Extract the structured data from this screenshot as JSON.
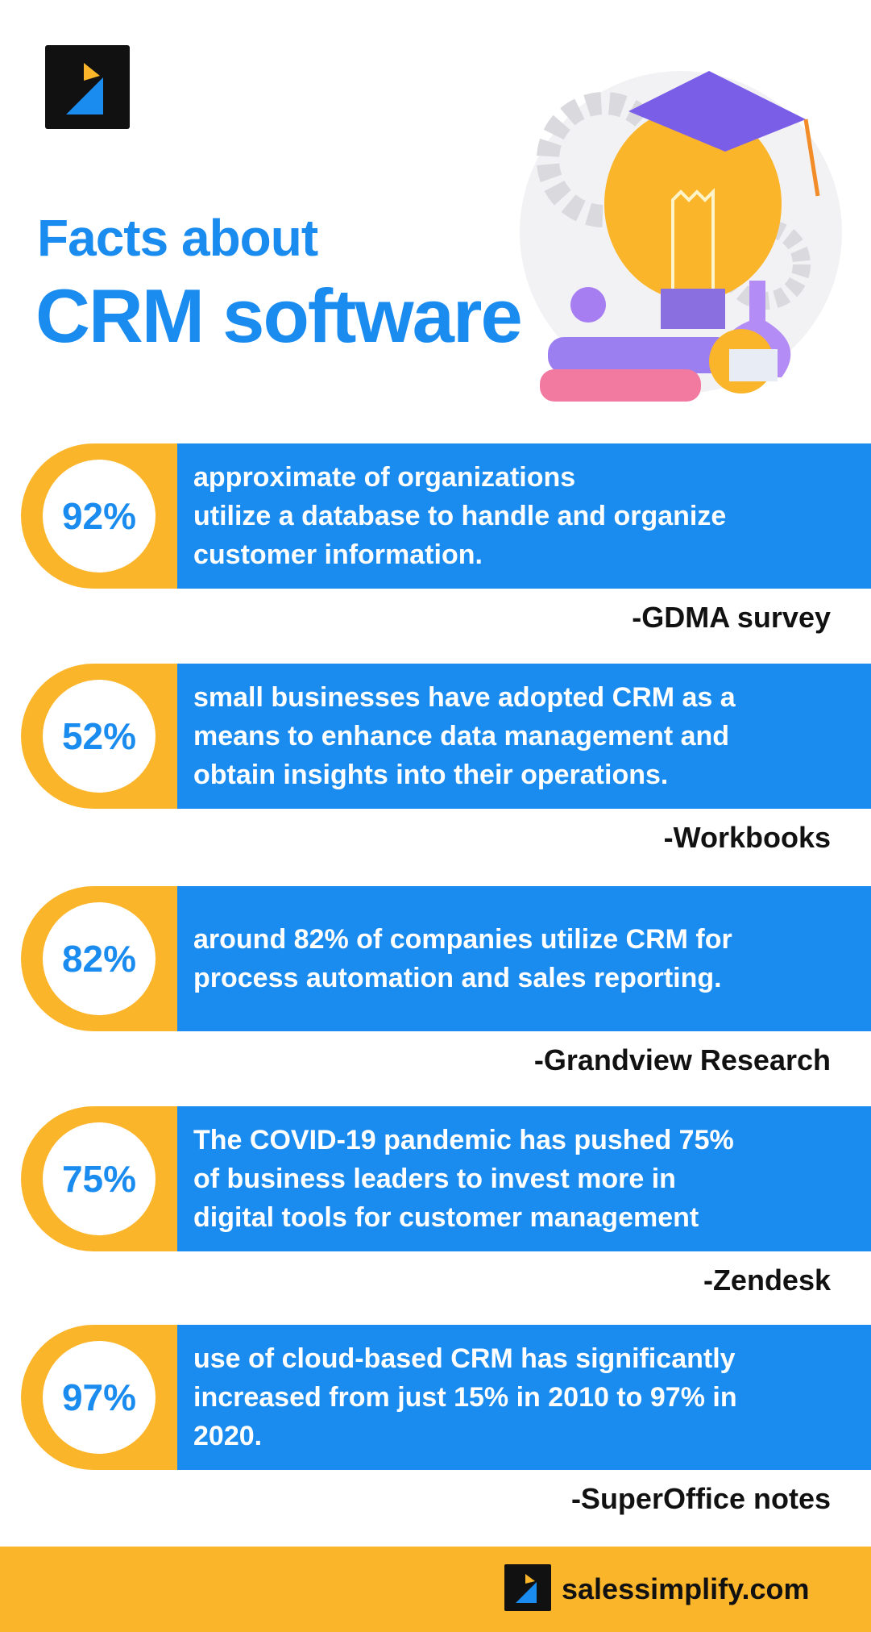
{
  "header": {
    "title_line1": "Facts about",
    "title_line2": "CRM software"
  },
  "facts": [
    {
      "stat": "92%",
      "lines": [
        "approximate of organizations",
        "utilize a database to handle and organize",
        "customer information."
      ],
      "source": "-GDMA survey"
    },
    {
      "stat": "52%",
      "lines": [
        "small businesses have adopted CRM as a",
        "means to enhance data management and",
        "obtain insights into their operations."
      ],
      "source": "-Workbooks"
    },
    {
      "stat": "82%",
      "lines": [
        "around 82% of companies utilize CRM for",
        "process automation and sales reporting."
      ],
      "source": "-Grandview Research"
    },
    {
      "stat": "75%",
      "lines": [
        "The COVID-19 pandemic has pushed 75%",
        "of business leaders to invest more in",
        "digital tools for customer management"
      ],
      "source": "-Zendesk"
    },
    {
      "stat": "97%",
      "lines": [
        "use of cloud-based CRM has significantly",
        "increased from just 15% in 2010 to 97% in",
        "2020."
      ],
      "source": "-SuperOffice notes"
    }
  ],
  "footer": {
    "site": "salessimplify.com"
  }
}
